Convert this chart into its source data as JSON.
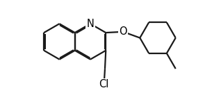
{
  "bg_color": "#ffffff",
  "bond_color": "#1a1a1a",
  "atom_label_color": "#000000",
  "line_width": 1.6,
  "font_size": 10.5,
  "figsize": [
    3.18,
    1.37
  ],
  "dpi": 100,
  "bl": 0.36,
  "xlim": [
    0.0,
    3.5
  ],
  "ylim": [
    -0.55,
    1.35
  ]
}
